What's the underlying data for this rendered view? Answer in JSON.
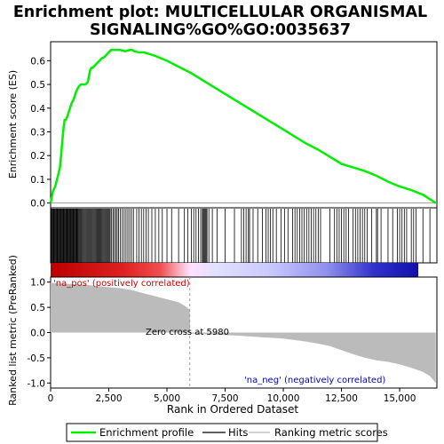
{
  "title_line1": "Enrichment plot: MULTICELLULAR ORGANISMAL",
  "title_line2": "SIGNALING%GO%GO:0035637",
  "chart_data": {
    "type": "line",
    "x_max": 16600,
    "top_panel": {
      "ylabel": "Enrichment score (ES)",
      "ylim": [
        -0.02,
        0.68
      ],
      "yticks": [
        0.0,
        0.1,
        0.2,
        0.3,
        0.4,
        0.5,
        0.6
      ],
      "ytick_labels": [
        "0.0",
        "0.1",
        "0.2",
        "0.3",
        "0.4",
        "0.5",
        "0.6"
      ],
      "series": [
        {
          "name": "Enrichment profile",
          "color": "#00ee00",
          "x": [
            0,
            100,
            200,
            300,
            400,
            450,
            500,
            550,
            600,
            650,
            700,
            800,
            900,
            1000,
            1100,
            1200,
            1300,
            1400,
            1500,
            1600,
            1700,
            1750,
            1800,
            1900,
            2000,
            2100,
            2200,
            2300,
            2400,
            2500,
            2600,
            2700,
            2800,
            3000,
            3200,
            3400,
            3500,
            3600,
            3800,
            4000,
            4200,
            4500,
            5000,
            5500,
            6000,
            6500,
            7000,
            7500,
            8000,
            8500,
            9000,
            9500,
            10000,
            10500,
            11000,
            11500,
            12000,
            12500,
            13000,
            13500,
            14000,
            14500,
            15000,
            15500,
            16000,
            16400,
            16550
          ],
          "y": [
            0.0,
            0.05,
            0.07,
            0.11,
            0.15,
            0.2,
            0.26,
            0.31,
            0.35,
            0.35,
            0.36,
            0.39,
            0.42,
            0.44,
            0.47,
            0.49,
            0.5,
            0.5,
            0.5,
            0.51,
            0.56,
            0.57,
            0.57,
            0.58,
            0.59,
            0.6,
            0.61,
            0.615,
            0.625,
            0.635,
            0.645,
            0.645,
            0.645,
            0.645,
            0.64,
            0.645,
            0.645,
            0.64,
            0.635,
            0.635,
            0.63,
            0.62,
            0.6,
            0.575,
            0.55,
            0.52,
            0.49,
            0.46,
            0.43,
            0.4,
            0.37,
            0.34,
            0.31,
            0.28,
            0.25,
            0.225,
            0.195,
            0.165,
            0.15,
            0.135,
            0.115,
            0.09,
            0.07,
            0.055,
            0.035,
            0.01,
            0.0
          ]
        }
      ]
    },
    "hits_panel": {
      "name": "Hits",
      "hit_positions": [
        30,
        60,
        90,
        120,
        150,
        180,
        210,
        240,
        270,
        300,
        330,
        360,
        390,
        420,
        450,
        480,
        510,
        540,
        570,
        600,
        630,
        660,
        690,
        720,
        750,
        780,
        810,
        840,
        870,
        900,
        930,
        960,
        990,
        1020,
        1050,
        1080,
        1110,
        1140,
        1170,
        1200,
        1240,
        1280,
        1320,
        1360,
        1400,
        1440,
        1480,
        1520,
        1560,
        1600,
        1640,
        1680,
        1720,
        1760,
        1800,
        1840,
        1880,
        1920,
        1960,
        2000,
        2040,
        2080,
        2120,
        2160,
        2200,
        2240,
        2280,
        2320,
        2360,
        2400,
        2440,
        2480,
        2520,
        2560,
        2620,
        2680,
        2740,
        2800,
        2860,
        2920,
        3000,
        3080,
        3160,
        3240,
        3320,
        3400,
        3480,
        3560,
        3700,
        3800,
        3900,
        4000,
        4100,
        4200,
        4350,
        4500,
        4650,
        4800,
        5000,
        5200,
        5500,
        5750,
        5900,
        6050,
        6150,
        6250,
        6350,
        6450,
        6520,
        6560,
        6600,
        6640,
        6680,
        6720,
        6800,
        6950,
        7150,
        7500,
        7900,
        8200,
        8300,
        8400,
        8500,
        8550,
        8700,
        8900,
        9100,
        9250,
        9350,
        9450,
        9550,
        9700,
        9900,
        10050,
        10200,
        10400,
        10500,
        10600,
        10700,
        10800,
        10900,
        11000,
        11100,
        11200,
        11300,
        11400,
        11500,
        11600,
        12000,
        12200,
        12300,
        12400,
        12500,
        12600,
        12700,
        12800,
        13000,
        13100,
        13200,
        13300,
        13400,
        13500,
        13600,
        13800,
        14000,
        14050,
        14200,
        14500,
        14700,
        14900,
        15000,
        15100,
        15200,
        15300,
        15500,
        15600,
        15700,
        16000,
        16300
      ]
    },
    "bottom_panel": {
      "ylabel": "Ranked list metric (PreRanked)",
      "xlabel": "Rank in Ordered Dataset",
      "ylim": [
        -1.1,
        1.1
      ],
      "yticks": [
        -1.0,
        -0.5,
        0.0,
        0.5,
        1.0
      ],
      "ytick_labels": [
        "-1.0",
        "-0.5",
        "0.0",
        "0.5",
        "1.0"
      ],
      "xticks": [
        0,
        2500,
        5000,
        7500,
        10000,
        12500,
        15000
      ],
      "xtick_labels": [
        "0",
        "2,500",
        "5,000",
        "7,500",
        "10,000",
        "12,500",
        "15,000"
      ],
      "zero_cross": 5980,
      "metric": {
        "name": "Ranking metric scores",
        "x": [
          0,
          100,
          500,
          1000,
          1500,
          2000,
          2500,
          3000,
          3500,
          4000,
          4500,
          5000,
          5500,
          5800,
          5980,
          6000,
          7000,
          8000,
          9000,
          10000,
          10500,
          11000,
          11500,
          12000,
          12500,
          13000,
          13500,
          14000,
          14500,
          15000,
          15500,
          16000,
          16300,
          16550
        ],
        "y": [
          1.0,
          0.98,
          0.97,
          0.96,
          0.95,
          0.92,
          0.9,
          0.88,
          0.84,
          0.78,
          0.72,
          0.66,
          0.6,
          0.52,
          0.45,
          -0.02,
          -0.04,
          -0.06,
          -0.09,
          -0.12,
          -0.15,
          -0.18,
          -0.22,
          -0.27,
          -0.35,
          -0.43,
          -0.5,
          -0.55,
          -0.58,
          -0.63,
          -0.7,
          -0.78,
          -0.86,
          -1.0
        ]
      },
      "annotations": {
        "pos_label": "'na_pos' (positively correlated)",
        "neg_label": "'na_neg' (negatively correlated)",
        "zero_cross_label": "Zero cross at 5980"
      }
    },
    "legend": {
      "placement": "bottom",
      "items": [
        {
          "label": "Enrichment profile",
          "color": "#00ee00"
        },
        {
          "label": "Hits",
          "color": "#000000"
        },
        {
          "label": "Ranking metric scores",
          "color": "#bbbbbb"
        }
      ]
    }
  }
}
